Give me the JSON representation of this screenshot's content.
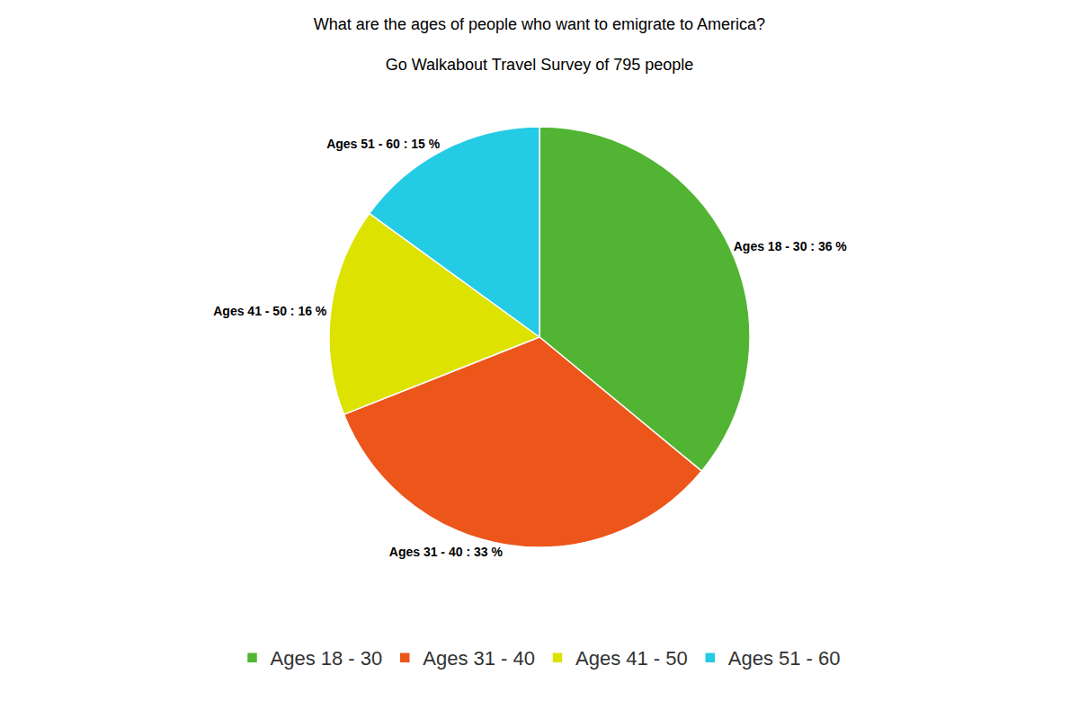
{
  "chart_data": {
    "type": "pie",
    "title": "What are the ages of people who want to emigrate to America?",
    "subtitle": "Go Walkabout Travel Survey of 795 people",
    "categories": [
      "Ages 18 - 30",
      "Ages 31 - 40",
      "Ages 41 - 50",
      "Ages 51 - 60"
    ],
    "values": [
      36,
      33,
      16,
      15
    ],
    "value_labels": [
      "Ages 18 - 30 : 36 %",
      "Ages 31 - 40 : 33 %",
      "Ages 41 - 50 : 16 %",
      "Ages 51 - 60 : 15 %"
    ],
    "data_labels": true,
    "colors": [
      "#52b433",
      "#ec561b",
      "#dde200",
      "#24cbe5"
    ],
    "legend": "bottom"
  }
}
